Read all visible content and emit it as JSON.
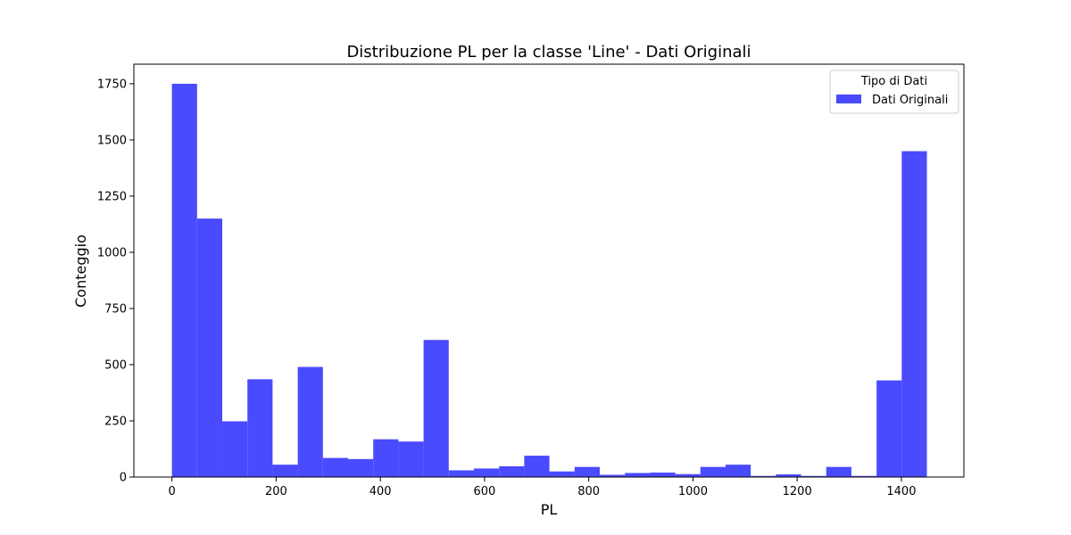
{
  "chart_data": {
    "type": "bar",
    "title": "Distribuzione PL per la classe 'Line' - Dati Originali",
    "xlabel": "PL",
    "ylabel": "Conteggio",
    "xlim": [
      -73,
      1520
    ],
    "ylim": [
      0,
      1837
    ],
    "xticks": [
      0,
      200,
      400,
      600,
      800,
      1000,
      1200,
      1400
    ],
    "yticks": [
      0,
      250,
      500,
      750,
      1000,
      1250,
      1500,
      1750
    ],
    "grid": false,
    "legend": {
      "title": "Tipo di Dati",
      "placement": "top-right"
    },
    "bin_edges": [
      0,
      48.3,
      96.6,
      144.9,
      193.2,
      241.5,
      289.8,
      338.1,
      386.4,
      434.7,
      483,
      531.3,
      579.6,
      627.9,
      676.2,
      724.5,
      772.8,
      821.1,
      869.4,
      917.7,
      966,
      1014.3,
      1062.6,
      1110.9,
      1159.2,
      1207.5,
      1255.8,
      1304.1,
      1352.4,
      1400.7,
      1449
    ],
    "series": [
      {
        "name": "Dati Originali",
        "color": "#4a4aff",
        "values": [
          1750,
          1150,
          248,
          435,
          55,
          490,
          85,
          80,
          168,
          158,
          610,
          30,
          38,
          48,
          95,
          25,
          45,
          10,
          18,
          20,
          13,
          45,
          55,
          5,
          12,
          5,
          45,
          5,
          430,
          1450
        ]
      }
    ]
  }
}
